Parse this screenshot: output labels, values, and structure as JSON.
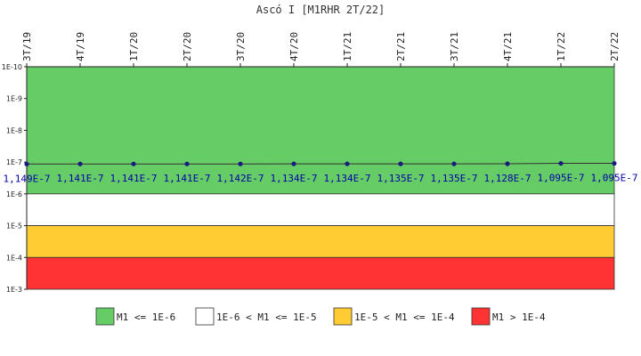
{
  "chart_data": {
    "type": "line",
    "title": "Ascó I [M1RHR 2T/22]",
    "xlabel": "",
    "ylabel": "",
    "y_scale": "log",
    "y_inverted": true,
    "ylim": [
      1e-10,
      0.001
    ],
    "y_ticks": [
      "1E-10",
      "1E-9",
      "1E-8",
      "1E-7",
      "1E-6",
      "1E-5",
      "1E-4",
      "1E-3"
    ],
    "categories": [
      "3T/19",
      "4T/19",
      "1T/20",
      "2T/20",
      "3T/20",
      "4T/20",
      "1T/21",
      "2T/21",
      "3T/21",
      "4T/21",
      "1T/22",
      "2T/22"
    ],
    "series": [
      {
        "values": [
          1.149e-07,
          1.141e-07,
          1.141e-07,
          1.141e-07,
          1.142e-07,
          1.134e-07,
          1.134e-07,
          1.135e-07,
          1.135e-07,
          1.128e-07,
          1.095e-07,
          1.095e-07
        ],
        "labels": [
          "1,149E-7",
          "1,141E-7",
          "1,141E-7",
          "1,141E-7",
          "1,142E-7",
          "1,134E-7",
          "1,134E-7",
          "1,135E-7",
          "1,135E-7",
          "1,128E-7",
          "1,095E-7",
          "1,095E-7"
        ],
        "line_color": "#333333",
        "marker_color": "#1a1a80"
      }
    ],
    "bands": [
      {
        "from": 1e-10,
        "to": 1e-06,
        "color": "#66cc66",
        "label": "M1 <= 1E-6"
      },
      {
        "from": 1e-06,
        "to": 1e-05,
        "color": "#ffffff",
        "label": "1E-6 < M1 <= 1E-5"
      },
      {
        "from": 1e-05,
        "to": 0.0001,
        "color": "#ffcc33",
        "label": "1E-5 < M1 <= 1E-4"
      },
      {
        "from": 0.0001,
        "to": 0.001,
        "color": "#ff3333",
        "label": "M1 > 1E-4"
      }
    ],
    "legend_position": "bottom",
    "grid": false
  }
}
